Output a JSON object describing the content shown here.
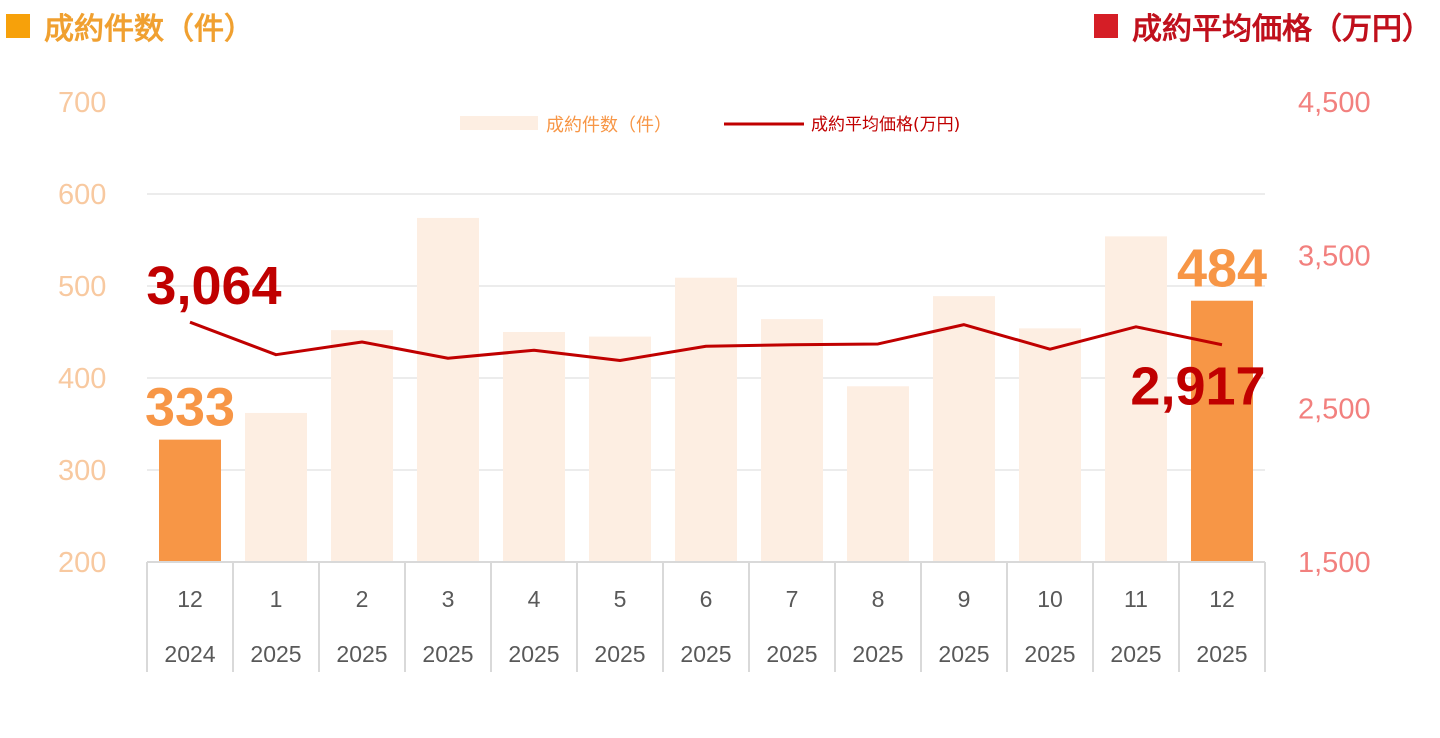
{
  "header": {
    "left_title": "成約件数（件）",
    "right_title": "成約平均価格（万円）"
  },
  "colors": {
    "bar_highlight": "#F79646",
    "bar_faded": "#FDEEE2",
    "line": "#C00000",
    "left_axis_text": "#F8C9A0",
    "right_axis_text": "#F2807E",
    "left_header": "#F0A030",
    "right_header": "#C0101C"
  },
  "chart_data": {
    "type": "bar",
    "categories": [
      {
        "month": "12",
        "year": "2024"
      },
      {
        "month": "1",
        "year": "2025"
      },
      {
        "month": "2",
        "year": "2025"
      },
      {
        "month": "3",
        "year": "2025"
      },
      {
        "month": "4",
        "year": "2025"
      },
      {
        "month": "5",
        "year": "2025"
      },
      {
        "month": "6",
        "year": "2025"
      },
      {
        "month": "7",
        "year": "2025"
      },
      {
        "month": "8",
        "year": "2025"
      },
      {
        "month": "9",
        "year": "2025"
      },
      {
        "month": "10",
        "year": "2025"
      },
      {
        "month": "11",
        "year": "2025"
      },
      {
        "month": "12",
        "year": "2025"
      }
    ],
    "series": [
      {
        "name": "成約件数（件）",
        "type": "bar",
        "axis": "left",
        "values": [
          333,
          362,
          452,
          574,
          450,
          445,
          509,
          464,
          391,
          489,
          454,
          554,
          484
        ],
        "highlighted": [
          0,
          12
        ]
      },
      {
        "name": "成約平均価格(万円)",
        "type": "line",
        "axis": "right",
        "values": [
          3064,
          2852,
          2935,
          2829,
          2881,
          2814,
          2907,
          2917,
          2922,
          3048,
          2888,
          3034,
          2917
        ]
      }
    ],
    "left_axis": {
      "ylim": [
        200,
        700
      ],
      "ticks": [
        "700",
        "600",
        "500",
        "400",
        "300",
        "200"
      ]
    },
    "right_axis": {
      "ylim": [
        1500,
        4500
      ],
      "ticks": [
        "4,500",
        "3,500",
        "2,500",
        "1,500"
      ]
    },
    "data_labels": [
      {
        "series": 0,
        "index": 0,
        "text": "333"
      },
      {
        "series": 0,
        "index": 12,
        "text": "484"
      },
      {
        "series": 1,
        "index": 0,
        "text": "3,064"
      },
      {
        "series": 1,
        "index": 12,
        "text": "2,917"
      }
    ],
    "legend": {
      "position": "top",
      "entries": [
        "成約件数（件）",
        "成約平均価格(万円)"
      ]
    },
    "grid": true
  }
}
